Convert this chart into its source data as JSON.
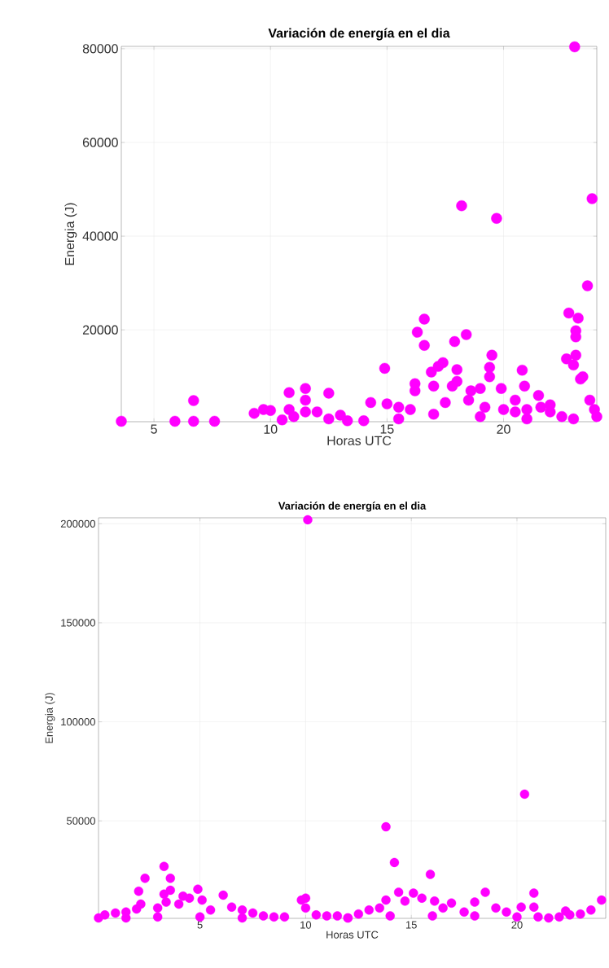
{
  "chart_data": [
    {
      "type": "scatter",
      "title": "Variación de energía en el dia",
      "xlabel": "Horas UTC",
      "ylabel": "Energia (J)",
      "xlim": [
        3.6,
        24.0
      ],
      "ylim": [
        400,
        80500
      ],
      "xticks": [
        5,
        10,
        15,
        20
      ],
      "yticks": [
        20000,
        40000,
        60000,
        80000
      ],
      "grid": true,
      "marker": "circle",
      "series": [
        {
          "color": "#ff00ff",
          "x": [
            3.6,
            5.9,
            6.7,
            6.7,
            7.6,
            9.3,
            9.7,
            10.0,
            10.8,
            11.5,
            11.5,
            12.5,
            10.5,
            11.0,
            12.0,
            13.0,
            13.3,
            14.0,
            14.3,
            14.9,
            15.0,
            15.5,
            16.2,
            16.2,
            16.3,
            16.6,
            16.6,
            16.9,
            17.0,
            17.2,
            17.4,
            17.8,
            17.9,
            18.0,
            18.0,
            18.2,
            18.4,
            18.6,
            19.0,
            19.4,
            19.4,
            19.5,
            19.7,
            19.9,
            20.5,
            20.8,
            20.9,
            21.5,
            21.6,
            22.0,
            22.5,
            22.7,
            22.8,
            23.0,
            23.1,
            23.1,
            23.1,
            23.2,
            23.3,
            23.4,
            23.6,
            23.7,
            23.8,
            23.05,
            23.9,
            24.0,
            16.0,
            17.5,
            18.5,
            19.2,
            20.0,
            20.5,
            21.0,
            22.0,
            15.5,
            17.0,
            19.0,
            21.0,
            23.0,
            12.5,
            11.5,
            10.8
          ],
          "values": [
            500,
            500,
            4900,
            500,
            500,
            2200,
            3000,
            2800,
            6600,
            7500,
            5000,
            6500,
            800,
            1500,
            2500,
            1800,
            600,
            600,
            4500,
            11800,
            4200,
            3500,
            8500,
            7000,
            19500,
            22300,
            16700,
            11000,
            8000,
            12200,
            13000,
            8000,
            17500,
            11500,
            9000,
            46500,
            19000,
            7000,
            7500,
            10000,
            12000,
            14600,
            43800,
            7500,
            5000,
            11400,
            8000,
            6000,
            3500,
            2500,
            1500,
            13800,
            23600,
            12500,
            14600,
            18500,
            19800,
            22500,
            9500,
            10000,
            29400,
            5000,
            48000,
            80400,
            3000,
            1500,
            3000,
            4500,
            5000,
            3500,
            3000,
            2500,
            3000,
            4000,
            1000,
            2000,
            1500,
            1000,
            1000,
            1000,
            2500,
            3000
          ]
        }
      ]
    },
    {
      "type": "scatter",
      "title": "Variación de energía en el dia",
      "xlabel": "Horas UTC",
      "ylabel": "Energia (J)",
      "xlim": [
        0.2,
        24.2
      ],
      "ylim": [
        800,
        203000
      ],
      "xticks": [
        5,
        10,
        15,
        20
      ],
      "yticks": [
        50000,
        100000,
        150000,
        200000
      ],
      "grid": true,
      "marker": "circle",
      "series": [
        {
          "color": "#ff00ff",
          "x": [
            0.2,
            0.5,
            1.0,
            1.5,
            2.0,
            2.2,
            2.1,
            2.4,
            3.0,
            3.3,
            3.3,
            3.6,
            3.6,
            3.4,
            4.0,
            4.2,
            4.5,
            4.9,
            5.1,
            5.5,
            6.1,
            6.5,
            7.0,
            7.5,
            8.0,
            8.5,
            9.0,
            9.8,
            10.0,
            10.0,
            10.1,
            10.5,
            11.0,
            11.5,
            12.0,
            12.5,
            13.0,
            13.5,
            13.8,
            13.8,
            14.2,
            14.4,
            14.7,
            15.1,
            15.5,
            15.9,
            16.1,
            16.5,
            16.9,
            17.5,
            18.0,
            18.5,
            19.0,
            19.5,
            20.2,
            20.36,
            20.8,
            20.8,
            21.0,
            21.5,
            22.0,
            22.3,
            22.5,
            23.0,
            23.5,
            24.0,
            1.5,
            3.0,
            5.0,
            7.0,
            12.0,
            14.0,
            16.0,
            18.0,
            20.0
          ],
          "values": [
            1000,
            2500,
            3500,
            4000,
            5500,
            8000,
            14500,
            21000,
            6000,
            13000,
            27000,
            21000,
            15000,
            9000,
            8000,
            12000,
            11000,
            15500,
            10000,
            5000,
            12500,
            6500,
            5000,
            3500,
            2000,
            1500,
            1500,
            10000,
            11000,
            6000,
            202000,
            2500,
            2000,
            2000,
            1000,
            3000,
            5000,
            6000,
            47000,
            10000,
            29000,
            14000,
            9500,
            13500,
            11000,
            23000,
            9500,
            6000,
            8500,
            4000,
            9000,
            14000,
            6000,
            4000,
            6500,
            63500,
            13500,
            6500,
            1500,
            1000,
            1500,
            4500,
            2500,
            3000,
            5000,
            10000,
            1000,
            1500,
            1500,
            1000,
            1000,
            2000,
            2000,
            2000,
            1500
          ]
        }
      ]
    }
  ]
}
